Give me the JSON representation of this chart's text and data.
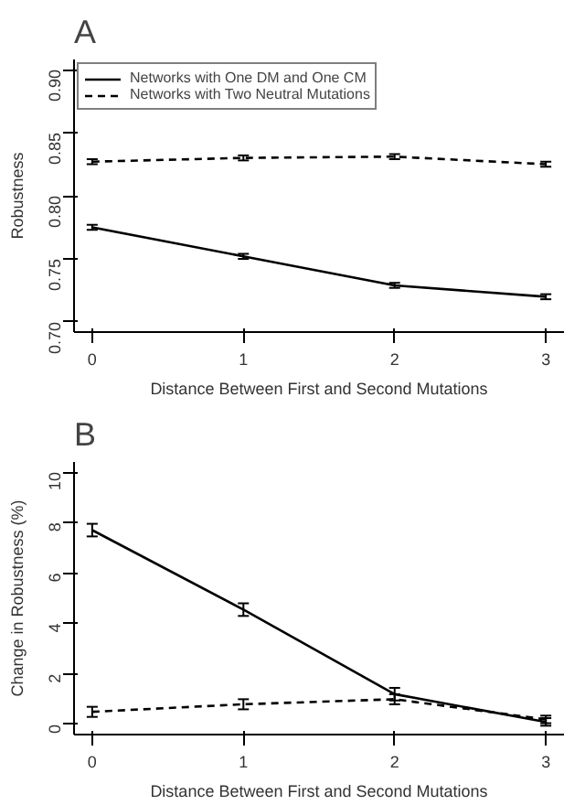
{
  "chart_data": [
    {
      "type": "line",
      "title": "A",
      "xlabel": "Distance Between First and Second Mutations",
      "ylabel": "Robustness",
      "x": [
        0,
        1,
        2,
        3
      ],
      "xlim": [
        -0.12,
        3.12
      ],
      "xticks": [
        0,
        1,
        2,
        3
      ],
      "ylim": [
        0.692,
        0.908
      ],
      "yticks": [
        {
          "value": 0.7,
          "label": "0.70"
        },
        {
          "value": 0.75,
          "label": "0.75"
        },
        {
          "value": 0.8,
          "label": "0.80"
        },
        {
          "value": 0.85,
          "label": "0.85"
        },
        {
          "value": 0.9,
          "label": "0.90"
        }
      ],
      "grid": false,
      "legend": "top left",
      "marker": "none",
      "series": [
        {
          "name": "Networks with One DM and One CM",
          "color": "#000000",
          "line_style": "solid",
          "values": [
            0.775,
            0.752,
            0.729,
            0.72
          ],
          "errors": [
            0.002,
            0.002,
            0.002,
            0.002
          ]
        },
        {
          "name": "Networks with Two Neutral Mutations",
          "color": "#000000",
          "line_style": "dashed",
          "values": [
            0.827,
            0.83,
            0.831,
            0.825
          ],
          "errors": [
            0.002,
            0.002,
            0.002,
            0.002
          ]
        }
      ]
    },
    {
      "type": "line",
      "title": "B",
      "xlabel": "Distance Between First and Second Mutations",
      "ylabel": "Change in Robustness (%)",
      "x": [
        0,
        1,
        2,
        3
      ],
      "xlim": [
        -0.12,
        3.12
      ],
      "xticks": [
        0,
        1,
        2,
        3
      ],
      "ylim": [
        -0.4,
        10.4
      ],
      "yticks": [
        0,
        2,
        4,
        6,
        8,
        10
      ],
      "grid": false,
      "legend": false,
      "marker": "none",
      "series": [
        {
          "color": "#000000",
          "line_style": "solid",
          "values": [
            7.7,
            4.55,
            1.2,
            0.1
          ],
          "errors": [
            0.25,
            0.25,
            0.25,
            0.15
          ]
        },
        {
          "color": "#000000",
          "line_style": "dashed",
          "values": [
            0.5,
            0.8,
            1.0,
            0.2
          ],
          "errors": [
            0.2,
            0.2,
            0.2,
            0.15
          ]
        }
      ]
    }
  ]
}
